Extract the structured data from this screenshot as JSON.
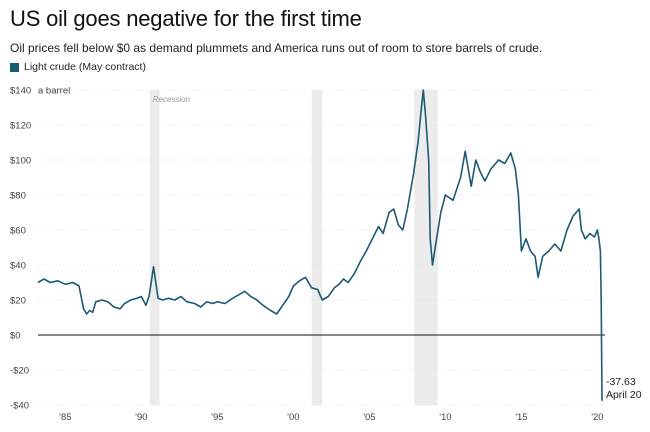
{
  "title": "US oil goes negative for the first time",
  "subtitle": "Oil prices fell below $0 as demand plummets and America runs out of room to store barrels of crude.",
  "legend": {
    "label": "Light crude (May contract)",
    "color": "#1d5a73"
  },
  "colors": {
    "line": "#1d5a73",
    "recession": "#ececec",
    "zero_line": "#111111",
    "grid": "#d9d9d9"
  },
  "chart_data": {
    "type": "line",
    "title": "US oil goes negative for the first time",
    "subtitle": "Oil prices fell below $0 as demand plummets and America runs out of room to store barrels of crude.",
    "ylabel": "a barrel",
    "ylim": [
      -40,
      140
    ],
    "xlim": [
      1983.2,
      2020.5
    ],
    "y_ticks": [
      -40,
      -20,
      0,
      20,
      40,
      60,
      80,
      100,
      120,
      140
    ],
    "y_tick_labels": [
      "-$40",
      "-$20",
      "$0",
      "$20",
      "$40",
      "$60",
      "$80",
      "$100",
      "$120",
      "$140"
    ],
    "x_ticks": [
      1985,
      1990,
      1995,
      2000,
      2005,
      2010,
      2015,
      2020
    ],
    "x_tick_labels": [
      "'85",
      "'90",
      "'95",
      "'00",
      "'05",
      "'10",
      "'15",
      "'20"
    ],
    "grid": true,
    "recessions": [
      {
        "label": "Recession",
        "start": 1990.55,
        "end": 1991.2
      },
      {
        "label": "",
        "start": 2001.2,
        "end": 2001.9
      },
      {
        "label": "",
        "start": 2007.95,
        "end": 2009.5
      }
    ],
    "annotation": {
      "value": "-37.63",
      "date": "April 20"
    },
    "series": [
      {
        "x": [
          1983.2,
          1983.6,
          1984.0,
          1984.5,
          1985.0,
          1985.5,
          1985.9,
          1986.2,
          1986.4,
          1986.6,
          1986.8,
          1987.0,
          1987.4,
          1987.8,
          1988.2,
          1988.6,
          1988.9,
          1989.3,
          1989.7,
          1990.0,
          1990.3,
          1990.5,
          1990.65,
          1990.8,
          1990.95,
          1991.1,
          1991.4,
          1991.8,
          1992.2,
          1992.6,
          1993.0,
          1993.5,
          1993.9,
          1994.3,
          1994.7,
          1995.0,
          1995.5,
          1996.0,
          1996.4,
          1996.8,
          1997.2,
          1997.6,
          1998.0,
          1998.5,
          1998.9,
          1999.3,
          1999.7,
          2000.0,
          2000.4,
          2000.8,
          2001.2,
          2001.6,
          2001.9,
          2002.3,
          2002.7,
          2003.0,
          2003.3,
          2003.6,
          2004.0,
          2004.4,
          2004.8,
          2005.2,
          2005.6,
          2005.9,
          2006.3,
          2006.6,
          2006.9,
          2007.2,
          2007.5,
          2007.9,
          2008.2,
          2008.45,
          2008.55,
          2008.7,
          2008.9,
          2009.0,
          2009.15,
          2009.4,
          2009.7,
          2010.0,
          2010.5,
          2011.0,
          2011.3,
          2011.7,
          2012.0,
          2012.3,
          2012.6,
          2013.0,
          2013.5,
          2013.9,
          2014.3,
          2014.6,
          2014.8,
          2015.0,
          2015.3,
          2015.6,
          2015.9,
          2016.1,
          2016.4,
          2016.8,
          2017.2,
          2017.6,
          2018.0,
          2018.4,
          2018.8,
          2018.95,
          2019.2,
          2019.5,
          2019.8,
          2020.0,
          2020.1,
          2020.2,
          2020.25,
          2020.3
        ],
        "values": [
          30,
          32,
          30,
          31,
          29,
          30,
          28,
          15,
          12,
          14,
          13,
          19,
          20,
          19,
          16,
          15,
          18,
          20,
          21,
          22,
          17,
          22,
          30,
          39,
          30,
          21,
          20,
          21,
          20,
          22,
          19,
          18,
          16,
          19,
          18,
          19,
          18,
          21,
          23,
          25,
          22,
          20,
          17,
          14,
          12,
          17,
          22,
          28,
          31,
          33,
          27,
          26,
          20,
          22,
          27,
          29,
          32,
          30,
          35,
          42,
          48,
          55,
          62,
          58,
          70,
          72,
          63,
          60,
          72,
          92,
          110,
          132,
          140,
          125,
          100,
          55,
          40,
          54,
          70,
          80,
          77,
          90,
          105,
          85,
          100,
          93,
          88,
          95,
          100,
          98,
          104,
          95,
          80,
          48,
          55,
          48,
          45,
          33,
          45,
          48,
          52,
          48,
          60,
          68,
          72,
          60,
          55,
          58,
          56,
          60,
          55,
          48,
          20,
          -37.63
        ]
      }
    ]
  }
}
